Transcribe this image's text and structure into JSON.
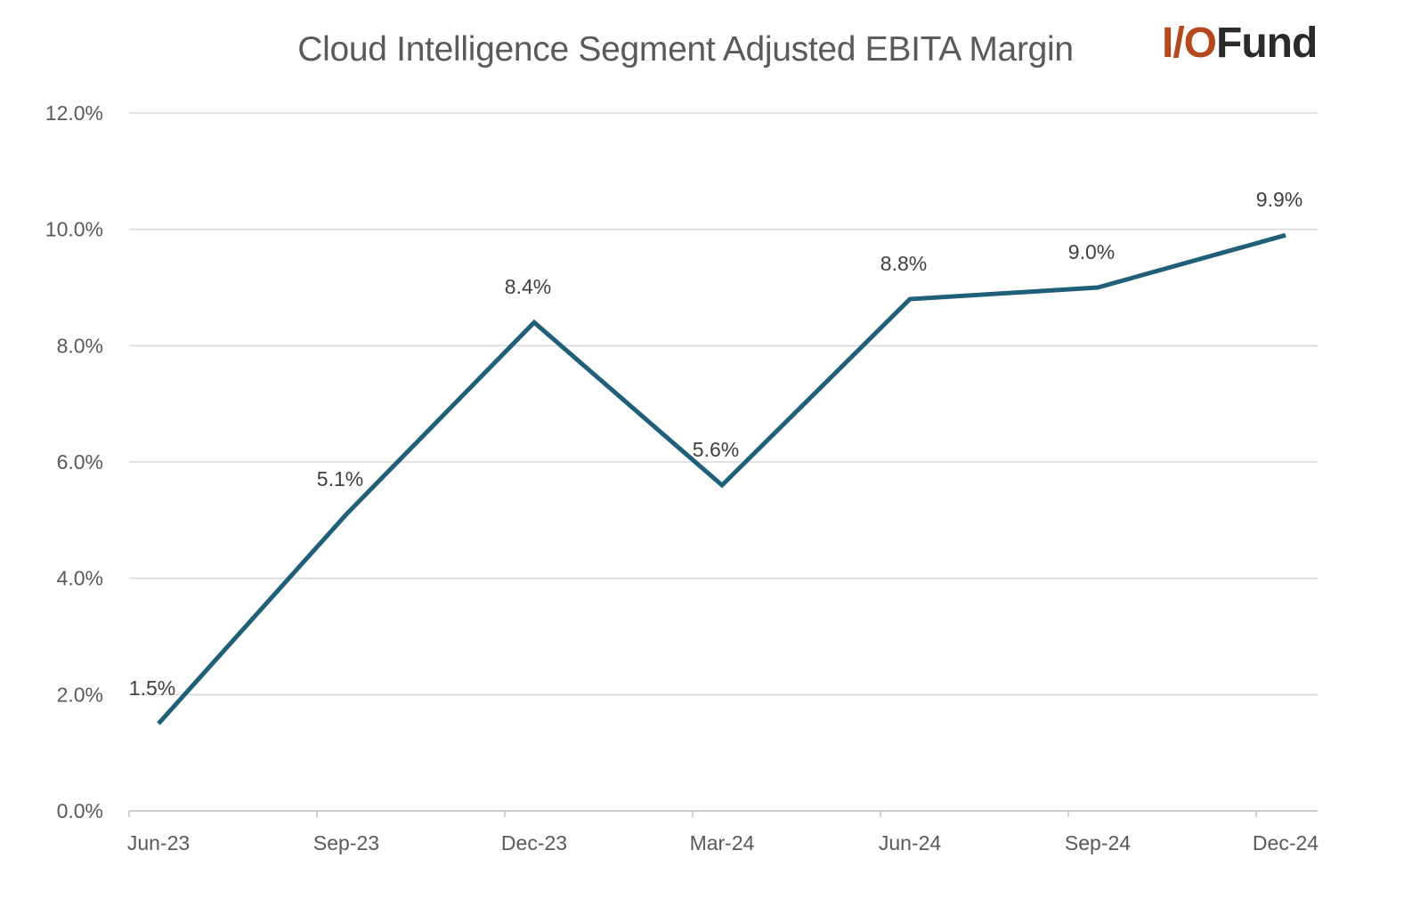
{
  "logo": {
    "prefix": "I/O",
    "suffix": "Fund"
  },
  "chart_data": {
    "type": "line",
    "title": "Cloud Intelligence Segment Adjusted EBITA Margin",
    "xlabel": "",
    "ylabel": "",
    "categories": [
      "Jun-23",
      "Sep-23",
      "Dec-23",
      "Mar-24",
      "Jun-24",
      "Sep-24",
      "Dec-24"
    ],
    "series": [
      {
        "values": [
          1.5,
          5.1,
          8.4,
          5.6,
          8.8,
          9.0,
          9.9
        ],
        "labels": [
          "1.5%",
          "5.1%",
          "8.4%",
          "5.6%",
          "8.8%",
          "9.0%",
          "9.9%"
        ],
        "color": "#1f5f7a"
      }
    ],
    "ylim": [
      0,
      12
    ],
    "yticks": [
      "0.0%",
      "2.0%",
      "4.0%",
      "6.0%",
      "8.0%",
      "10.0%",
      "12.0%"
    ],
    "grid": true,
    "legend": "none",
    "colors": {
      "line": "#1f5f7a",
      "grid": "#d9d9d9",
      "axis": "#bfbfbf"
    }
  }
}
